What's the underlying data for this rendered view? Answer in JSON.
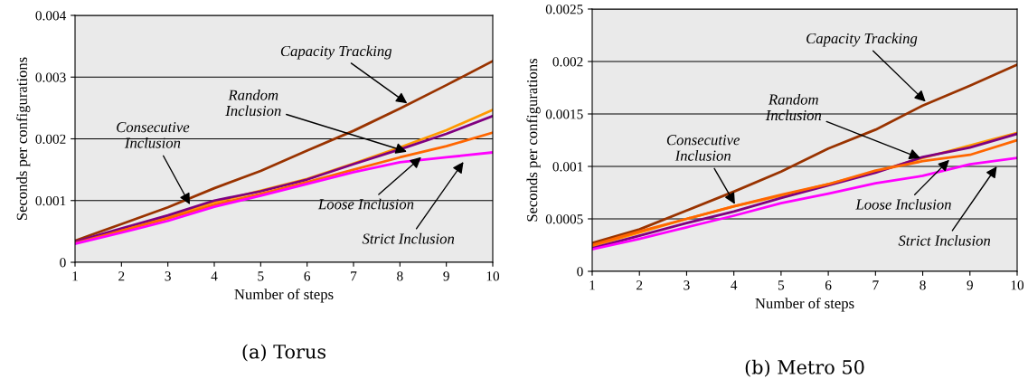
{
  "chart_data": [
    {
      "type": "line",
      "title": "(a) Torus",
      "xlabel": "Number of steps",
      "ylabel": "Seconds per configurations",
      "x": [
        1,
        2,
        3,
        4,
        5,
        6,
        7,
        8,
        9,
        10
      ],
      "series": [
        {
          "color": "#993300",
          "values": [
            0.00035,
            0.00062,
            0.00089,
            0.0012,
            0.00148,
            0.00181,
            0.00213,
            0.00249,
            0.00287,
            0.00326
          ]
        },
        {
          "color": "#ff9900",
          "values": [
            0.00032,
            0.00052,
            0.00073,
            0.00097,
            0.00116,
            0.00135,
            0.0016,
            0.00186,
            0.00214,
            0.00247
          ]
        },
        {
          "color": "#800080",
          "values": [
            0.00033,
            0.00055,
            0.00076,
            0.001,
            0.00115,
            0.00134,
            0.00159,
            0.00183,
            0.00208,
            0.00237
          ]
        },
        {
          "color": "#ff6600",
          "values": [
            0.00031,
            0.00051,
            0.00071,
            0.00093,
            0.00111,
            0.0013,
            0.0015,
            0.0017,
            0.00188,
            0.0021
          ]
        },
        {
          "color": "#ff00ff",
          "values": [
            0.0003,
            0.00048,
            0.00067,
            0.0009,
            0.00108,
            0.00127,
            0.00146,
            0.00162,
            0.0017,
            0.00178
          ]
        }
      ],
      "annotations": [
        {
          "text": "Capacity Tracking",
          "x": 8.2,
          "y": 0.00255
        },
        {
          "text": "Random\nInclusion",
          "x": 8.2,
          "y": 0.00178
        },
        {
          "text": "Consecutive\nInclusion",
          "x": 3.5,
          "y": 0.0009
        },
        {
          "text": "Loose Inclusion",
          "x": 8.5,
          "y": 0.00173
        },
        {
          "text": "Strict Inclusion",
          "x": 9.4,
          "y": 0.00166
        }
      ],
      "xlim": [
        1,
        10
      ],
      "xticks": [
        1,
        2,
        3,
        4,
        5,
        6,
        7,
        8,
        9,
        10
      ],
      "ylim": [
        0,
        0.004
      ],
      "yticks": [
        0,
        0.001,
        0.002,
        0.003,
        0.004
      ],
      "grid": "y",
      "marker": "none",
      "line_style": "solid"
    },
    {
      "type": "line",
      "title": "(b) Metro 50",
      "xlabel": "Number of steps",
      "ylabel": "Seconds per configurations",
      "x": [
        1,
        2,
        3,
        4,
        5,
        6,
        7,
        8,
        9,
        10
      ],
      "series": [
        {
          "color": "#993300",
          "values": [
            0.00027,
            0.0004,
            0.00058,
            0.00076,
            0.00095,
            0.00117,
            0.00135,
            0.00158,
            0.00177,
            0.00197
          ]
        },
        {
          "color": "#ff9900",
          "values": [
            0.00024,
            0.00037,
            0.0005,
            0.00062,
            0.00072,
            0.00083,
            0.00095,
            0.00108,
            0.0012,
            0.00132
          ]
        },
        {
          "color": "#800080",
          "values": [
            0.00022,
            0.00034,
            0.00046,
            0.00057,
            0.0007,
            0.00082,
            0.00094,
            0.00109,
            0.00118,
            0.00131
          ]
        },
        {
          "color": "#ff6600",
          "values": [
            0.00025,
            0.00038,
            0.0005,
            0.00062,
            0.00073,
            0.00083,
            0.00096,
            0.00105,
            0.00111,
            0.00125
          ]
        },
        {
          "color": "#ff00ff",
          "values": [
            0.00021,
            0.00031,
            0.00042,
            0.00053,
            0.00065,
            0.00074,
            0.00084,
            0.00091,
            0.00102,
            0.00108
          ]
        }
      ],
      "annotations": [
        {
          "text": "Capacity Tracking",
          "x": 8.1,
          "y": 0.0016
        },
        {
          "text": "Random\nInclusion",
          "x": 8.0,
          "y": 0.00107
        },
        {
          "text": "Consecutive\nInclusion",
          "x": 4.05,
          "y": 0.00062
        },
        {
          "text": "Loose Inclusion",
          "x": 8.6,
          "y": 0.00108
        },
        {
          "text": "Strict Inclusion",
          "x": 9.6,
          "y": 0.00102
        }
      ],
      "xlim": [
        1,
        10
      ],
      "xticks": [
        1,
        2,
        3,
        4,
        5,
        6,
        7,
        8,
        9,
        10
      ],
      "ylim": [
        0,
        0.0025
      ],
      "yticks": [
        0,
        0.0005,
        0.001,
        0.0015,
        0.002,
        0.0025
      ],
      "grid": "y",
      "marker": "none",
      "line_style": "solid"
    }
  ]
}
